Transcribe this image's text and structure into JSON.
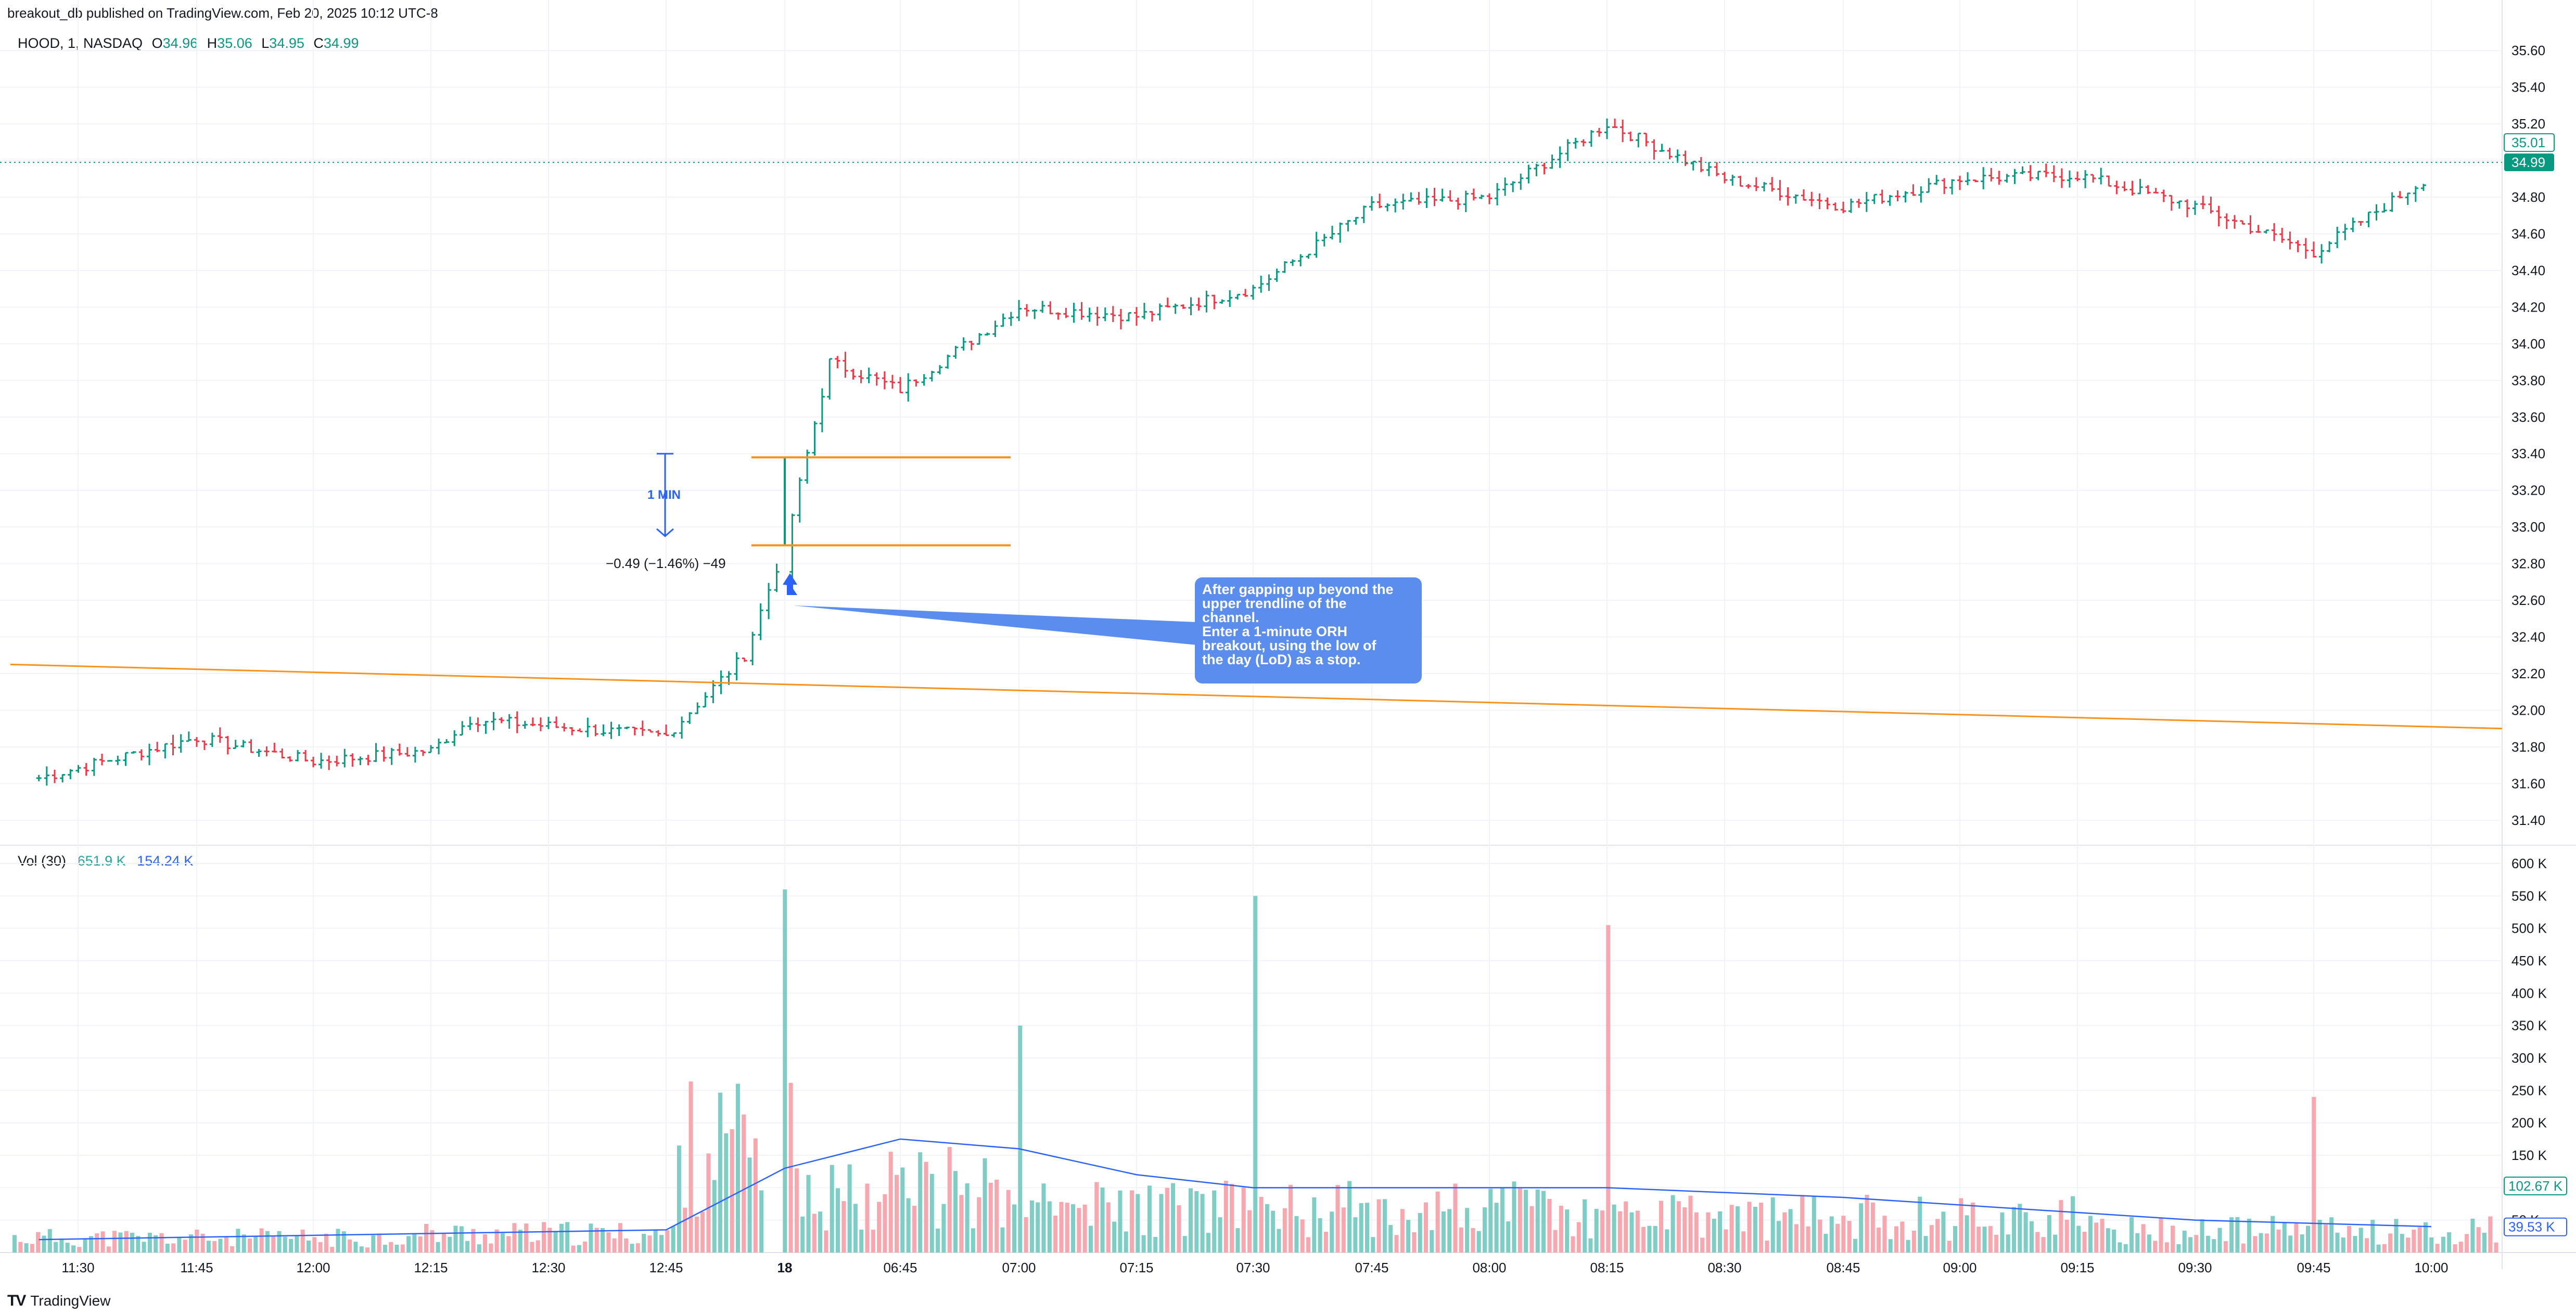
{
  "header": {
    "published_by": "breakout_db published on TradingView.com, Feb 20, 2025 10:12 UTC-8"
  },
  "legend": {
    "symbol": "HOOD, 1, NASDAQ",
    "o_label": "O",
    "o_value": "34.96",
    "h_label": "H",
    "h_value": "35.06",
    "l_label": "L",
    "l_value": "34.95",
    "c_label": "C",
    "c_value": "34.99"
  },
  "volume_legend": {
    "label": "Vol (30)",
    "value": "651.9 K",
    "ma_value": "154.24 K"
  },
  "annotation": {
    "note": "After gapping up beyond the\nupper trendline of the\nchannel.\nEnter a 1-minute ORH\nbreakout, using the low of\nthe day (LoD) as a stop.",
    "measure_tag": "1 MIN",
    "measure_label": "−0.49 (−1.46%) −49"
  },
  "brand": {
    "name": "TradingView",
    "logo": "TV"
  },
  "colors": {
    "up": "#089981",
    "down": "#f23645",
    "vol_up": "#7fcec5",
    "vol_down": "#f7a7ad",
    "trendline": "#f7931a",
    "ma": "#2962ff",
    "note_bg": "#5b8def"
  },
  "chart_data": [
    {
      "type": "candlestick",
      "title": "",
      "price_axis": {
        "ticks": [
          "35.60",
          "35.40",
          "35.20",
          "35.00",
          "34.80",
          "34.60",
          "34.40",
          "34.20",
          "34.00",
          "33.80",
          "33.60",
          "33.40",
          "33.20",
          "33.00",
          "32.80",
          "32.60",
          "32.40",
          "32.20",
          "32.00",
          "31.80",
          "31.60",
          "31.40"
        ],
        "range": [
          31.3,
          35.7
        ],
        "labels": [
          {
            "text": "35.01",
            "value": 35.01,
            "style": "outline"
          },
          {
            "text": "34.99",
            "value": 34.99,
            "style": "filled"
          }
        ]
      },
      "time_axis": [
        "11:30",
        "11:45",
        "12:00",
        "12:15",
        "12:30",
        "12:45",
        "18",
        "06:45",
        "07:00",
        "07:15",
        "07:30",
        "07:45",
        "08:00",
        "08:15",
        "08:30",
        "08:45",
        "09:00",
        "09:15",
        "09:30",
        "09:45",
        "10:00"
      ],
      "key_points": [
        {
          "time": "11:25",
          "price": 31.63
        },
        {
          "time": "11:45",
          "price": 31.85
        },
        {
          "time": "12:00",
          "price": 31.72
        },
        {
          "time": "12:15",
          "price": 31.78
        },
        {
          "time": "12:20",
          "price": 31.95
        },
        {
          "time": "12:45",
          "price": 31.86
        },
        {
          "time": "12:55",
          "price": 32.3
        },
        {
          "time": "18",
          "price": 32.9
        },
        {
          "time": "06:36",
          "price": 33.9
        },
        {
          "time": "06:45",
          "price": 33.75
        },
        {
          "time": "07:00",
          "price": 34.2
        },
        {
          "time": "07:15",
          "price": 34.15
        },
        {
          "time": "07:30",
          "price": 34.3
        },
        {
          "time": "07:45",
          "price": 34.75
        },
        {
          "time": "08:00",
          "price": 34.8
        },
        {
          "time": "08:15",
          "price": 35.2
        },
        {
          "time": "08:30",
          "price": 34.9
        },
        {
          "time": "08:45",
          "price": 34.75
        },
        {
          "time": "09:00",
          "price": 34.9
        },
        {
          "time": "09:15",
          "price": 34.92
        },
        {
          "time": "09:30",
          "price": 34.75
        },
        {
          "time": "09:45",
          "price": 34.5
        },
        {
          "time": "10:00",
          "price": 34.92
        }
      ],
      "trendline": {
        "from": {
          "time": "11:25",
          "price": 32.25
        },
        "to": {
          "time": "10:10",
          "price": 31.9
        }
      },
      "opening_range": {
        "high": 33.38,
        "low": 32.9
      },
      "last_price": 34.99
    },
    {
      "type": "bar",
      "title": "",
      "series_name": "Vol (30)",
      "axis_ticks": [
        "600 K",
        "550 K",
        "500 K",
        "450 K",
        "400 K",
        "350 K",
        "300 K",
        "250 K",
        "200 K",
        "150 K",
        "100 K",
        "50 K"
      ],
      "range": [
        0,
        600000
      ],
      "labels": [
        {
          "text": "102.67 K",
          "value": 102670
        },
        {
          "text": "39.53 K",
          "value": 39530
        }
      ],
      "notable_bars": [
        {
          "time": "18",
          "value": 560000
        },
        {
          "time": "07:00",
          "value": 350000
        },
        {
          "time": "07:30",
          "value": 550000
        },
        {
          "time": "08:15",
          "value": 505000
        },
        {
          "time": "09:45",
          "value": 240000
        }
      ],
      "ma_points": [
        {
          "time": "11:25",
          "value": 20000
        },
        {
          "time": "12:45",
          "value": 35000
        },
        {
          "time": "18",
          "value": 130000
        },
        {
          "time": "06:45",
          "value": 175000
        },
        {
          "time": "07:00",
          "value": 160000
        },
        {
          "time": "07:15",
          "value": 120000
        },
        {
          "time": "07:30",
          "value": 100000
        },
        {
          "time": "08:15",
          "value": 100000
        },
        {
          "time": "08:45",
          "value": 85000
        },
        {
          "time": "09:30",
          "value": 50000
        },
        {
          "time": "10:00",
          "value": 40000
        }
      ]
    }
  ]
}
